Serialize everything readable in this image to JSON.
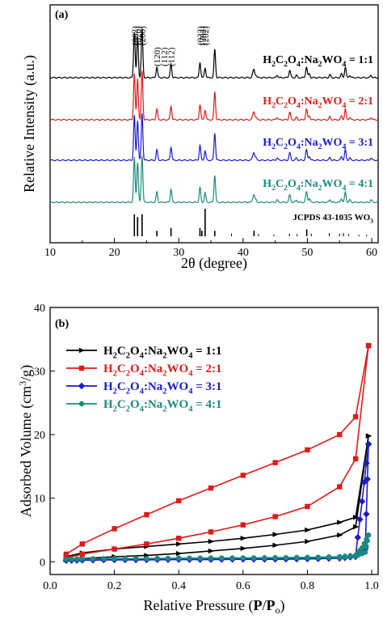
{
  "chart_data": [
    {
      "type": "line",
      "panel_label": "(a)",
      "xlabel": "2θ (degree)",
      "ylabel": "Relative Intensity (a.u.)",
      "xlim": [
        10,
        61
      ],
      "xticks": [
        10,
        20,
        30,
        40,
        50,
        60
      ],
      "peaks_2theta": [
        23.1,
        23.6,
        24.3,
        26.6,
        28.8,
        33.3,
        34.1,
        35.6,
        41.7,
        47.3,
        49.9,
        55.9
      ],
      "peak_labels": [
        {
          "text": "(002)",
          "x": 23.1
        },
        {
          "text": "(020)",
          "x": 23.6
        },
        {
          "text": "(200)",
          "x": 24.3
        },
        {
          "text": "(120)",
          "x": 26.6
        },
        {
          "text": "(112)",
          "x": 27.7
        },
        {
          "text": "(112)",
          "x": 28.8
        },
        {
          "text": "(022)",
          "x": 33.3
        },
        {
          "text": "(2̄02)",
          "x": 33.7
        },
        {
          "text": "(202)",
          "x": 34.1
        }
      ],
      "series": [
        {
          "name": "H2C2O4:Na2WO4 = 1:1",
          "color": "#000000"
        },
        {
          "name": "H2C2O4:Na2WO4 = 2:1",
          "color": "#e01a1a"
        },
        {
          "name": "H2C2O4:Na2WO4 = 3:1",
          "color": "#1a1acc"
        },
        {
          "name": "H2C2O4:Na2WO4 = 4:1",
          "color": "#1a8a80"
        }
      ],
      "reference": {
        "label": "JCPDS 43-1035  WO3",
        "x": [
          23.1,
          23.6,
          24.3,
          26.6,
          28.8,
          33.3,
          33.6,
          34.1,
          35.6,
          41.7,
          49.9
        ],
        "intensity": [
          0.8,
          0.7,
          0.8,
          0.2,
          0.3,
          0.3,
          0.2,
          1.0,
          0.2,
          0.2,
          0.25
        ]
      }
    },
    {
      "type": "line",
      "panel_label": "(b)",
      "xlabel": "Relative Pressure (P/Po)",
      "ylabel": "Adsorbed Volume (cm3/g)",
      "xlim": [
        0.0,
        1.02
      ],
      "ylim": [
        -2,
        40
      ],
      "xticks": [
        0.0,
        0.2,
        0.4,
        0.6,
        0.8,
        1.0
      ],
      "yticks": [
        0,
        10,
        20,
        30,
        40
      ],
      "legend": "top-left",
      "series": [
        {
          "name": "H2C2O4:Na2WO4 = 1:1",
          "color": "#000000",
          "marker": "triangle-right",
          "adsorption": {
            "x": [
              0.05,
              0.1,
              0.2,
              0.3,
              0.4,
              0.5,
              0.6,
              0.7,
              0.8,
              0.9,
              0.95,
              0.99
            ],
            "y": [
              0.3,
              0.5,
              0.8,
              1.0,
              1.3,
              1.7,
              2.1,
              2.6,
              3.2,
              4.2,
              5.5,
              19.8
            ]
          },
          "desorption": {
            "x": [
              0.99,
              0.95,
              0.9,
              0.8,
              0.7,
              0.6,
              0.5,
              0.4,
              0.3,
              0.2,
              0.1,
              0.05
            ],
            "y": [
              19.8,
              7.0,
              6.2,
              5.0,
              4.3,
              3.7,
              3.2,
              2.8,
              2.4,
              2.0,
              1.4,
              0.8
            ]
          }
        },
        {
          "name": "H2C2O4:Na2WO4 = 2:1",
          "color": "#e01a1a",
          "marker": "square",
          "adsorption": {
            "x": [
              0.05,
              0.1,
              0.2,
              0.3,
              0.4,
              0.5,
              0.6,
              0.7,
              0.8,
              0.9,
              0.95,
              0.99
            ],
            "y": [
              0.6,
              1.2,
              2.0,
              2.8,
              3.7,
              4.7,
              5.8,
              7.1,
              8.7,
              11.8,
              16.2,
              34.0
            ]
          },
          "desorption": {
            "x": [
              0.99,
              0.95,
              0.9,
              0.8,
              0.7,
              0.6,
              0.5,
              0.4,
              0.3,
              0.2,
              0.1,
              0.05
            ],
            "y": [
              34.0,
              22.8,
              20.0,
              17.6,
              15.6,
              13.6,
              11.6,
              9.6,
              7.4,
              5.2,
              2.8,
              1.2
            ]
          }
        },
        {
          "name": "H2C2O4:Na2WO4 = 3:1",
          "color": "#1a1acc",
          "marker": "diamond",
          "adsorption": {
            "x": [
              0.05,
              0.1,
              0.2,
              0.3,
              0.4,
              0.5,
              0.6,
              0.7,
              0.8,
              0.9,
              0.95,
              0.98,
              0.99
            ],
            "y": [
              0.2,
              0.25,
              0.3,
              0.3,
              0.35,
              0.35,
              0.4,
              0.4,
              0.45,
              0.55,
              0.8,
              2.0,
              18.5
            ]
          },
          "desorption": {
            "x": [
              0.99,
              0.97,
              0.95,
              0.9,
              0.8,
              0.7,
              0.6,
              0.5,
              0.4,
              0.3,
              0.2,
              0.1,
              0.05
            ],
            "y": [
              18.5,
              9.5,
              1.0,
              0.7,
              0.6,
              0.55,
              0.5,
              0.5,
              0.45,
              0.4,
              0.4,
              0.35,
              0.3
            ]
          }
        },
        {
          "name": "H2C2O4:Na2WO4 = 4:1",
          "color": "#1a8a80",
          "marker": "circle",
          "adsorption": {
            "x": [
              0.05,
              0.1,
              0.2,
              0.3,
              0.4,
              0.5,
              0.6,
              0.7,
              0.8,
              0.9,
              0.95,
              0.98,
              0.99
            ],
            "y": [
              0.4,
              0.45,
              0.5,
              0.5,
              0.55,
              0.55,
              0.6,
              0.6,
              0.65,
              0.7,
              0.9,
              1.5,
              4.2
            ]
          },
          "desorption": {
            "x": [
              0.99,
              0.97,
              0.95,
              0.9,
              0.8,
              0.7,
              0.6,
              0.5,
              0.4,
              0.3,
              0.2,
              0.1,
              0.05
            ],
            "y": [
              4.2,
              2.2,
              1.0,
              0.8,
              0.7,
              0.65,
              0.6,
              0.6,
              0.55,
              0.5,
              0.5,
              0.45,
              0.4
            ]
          }
        }
      ]
    }
  ]
}
